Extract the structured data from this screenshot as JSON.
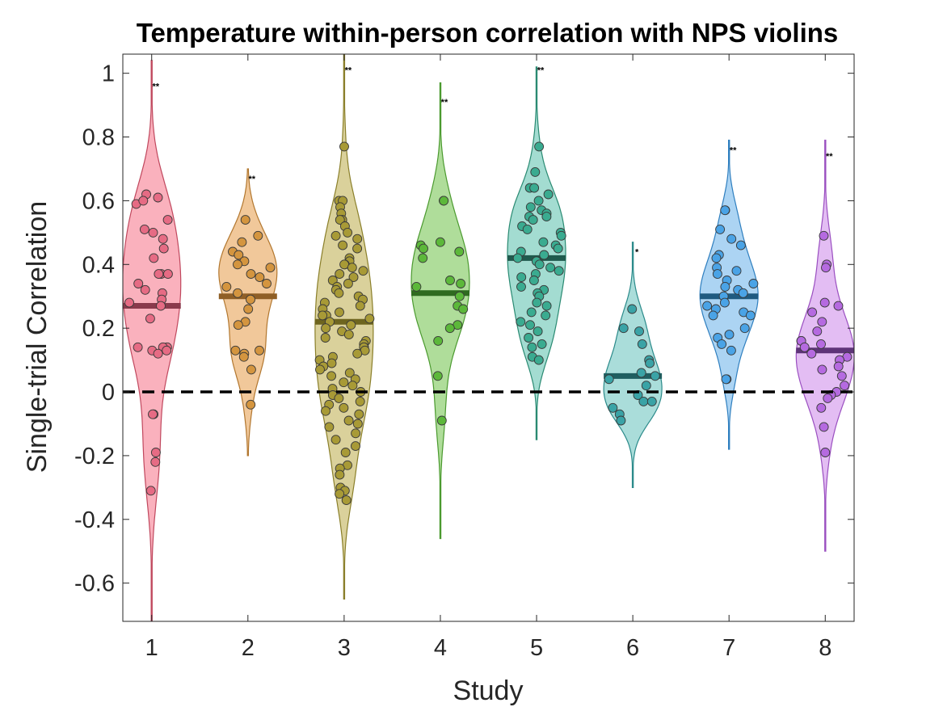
{
  "chart_data": {
    "type": "violin",
    "title": "Temperature within-person correlation with NPS violins",
    "xlabel": "Study",
    "ylabel": "Single-trial Correlation",
    "xlim": [
      0.7,
      8.3
    ],
    "ylim": [
      -0.72,
      1.06
    ],
    "categories": [
      "1",
      "2",
      "3",
      "4",
      "5",
      "6",
      "7",
      "8"
    ],
    "y_ticks": [
      -0.6,
      -0.4,
      -0.2,
      0,
      0.2,
      0.4,
      0.6,
      0.8,
      1
    ],
    "y_tick_labels": [
      "-0.6",
      "-0.4",
      "-0.2",
      "0",
      "0.2",
      "0.4",
      "0.6",
      "0.8",
      "1"
    ],
    "reference_line": {
      "y": 0,
      "style": "dashed"
    },
    "grid": false,
    "series": [
      {
        "study": 1,
        "fill": "#f9a8b6",
        "edge": "#c0485e",
        "point": "#e66b84",
        "mean_color": "#8a3a4c",
        "mean": 0.27,
        "significance": "**",
        "sig_y": 0.95,
        "violin_range": [
          -0.79,
          1.04
        ],
        "points": [
          0.59,
          0.54,
          0.62,
          0.6,
          0.61,
          0.5,
          0.51,
          0.48,
          0.45,
          0.42,
          0.37,
          0.37,
          0.37,
          0.34,
          0.32,
          0.31,
          0.29,
          0.28,
          0.27,
          0.23,
          0.14,
          0.14,
          0.14,
          0.13,
          0.13,
          0.12,
          -0.07,
          -0.07,
          -0.19,
          -0.22,
          -0.31
        ]
      },
      {
        "study": 2,
        "fill": "#efc28f",
        "edge": "#b2772f",
        "point": "#d4953f",
        "mean_color": "#8f5f26",
        "mean": 0.3,
        "significance": "**",
        "sig_y": 0.66,
        "violin_range": [
          -0.2,
          0.7
        ],
        "points": [
          0.54,
          0.49,
          0.47,
          0.44,
          0.43,
          0.41,
          0.4,
          0.39,
          0.37,
          0.36,
          0.34,
          0.33,
          0.31,
          0.29,
          0.26,
          0.22,
          0.21,
          0.13,
          0.13,
          0.12,
          0.11,
          0.07,
          -0.04
        ]
      },
      {
        "study": 3,
        "fill": "#d6cc90",
        "edge": "#8a7f2a",
        "point": "#a89a36",
        "mean_color": "#6e651f",
        "mean": 0.22,
        "significance": "**",
        "sig_y": 1.0,
        "violin_range": [
          -0.65,
          1.07
        ],
        "points": [
          0.77,
          0.6,
          0.6,
          0.58,
          0.56,
          0.54,
          0.54,
          0.52,
          0.5,
          0.49,
          0.48,
          0.46,
          0.45,
          0.42,
          0.41,
          0.4,
          0.4,
          0.39,
          0.38,
          0.37,
          0.36,
          0.35,
          0.34,
          0.33,
          0.32,
          0.31,
          0.3,
          0.29,
          0.28,
          0.27,
          0.26,
          0.25,
          0.24,
          0.24,
          0.23,
          0.22,
          0.21,
          0.2,
          0.19,
          0.18,
          0.17,
          0.16,
          0.15,
          0.14,
          0.14,
          0.13,
          0.12,
          0.11,
          0.1,
          0.09,
          0.08,
          0.07,
          0.06,
          0.05,
          0.04,
          0.03,
          0.02,
          0.01,
          0.0,
          -0.01,
          -0.02,
          -0.03,
          -0.04,
          -0.05,
          -0.06,
          -0.07,
          -0.09,
          -0.1,
          -0.11,
          -0.13,
          -0.15,
          -0.17,
          -0.19,
          -0.23,
          -0.24,
          -0.26,
          -0.3,
          -0.31,
          -0.32,
          -0.34
        ]
      },
      {
        "study": 4,
        "fill": "#a6d98f",
        "edge": "#4b9a2f",
        "point": "#5cb83a",
        "mean_color": "#2f6b20",
        "mean": 0.31,
        "significance": "**",
        "sig_y": 0.9,
        "violin_range": [
          -0.46,
          0.97
        ],
        "points": [
          0.6,
          0.6,
          0.47,
          0.46,
          0.45,
          0.44,
          0.42,
          0.35,
          0.34,
          0.33,
          0.3,
          0.27,
          0.26,
          0.21,
          0.2,
          0.16,
          0.05,
          -0.09
        ]
      },
      {
        "study": 5,
        "fill": "#99d8cc",
        "edge": "#2a8a72",
        "point": "#3aab90",
        "mean_color": "#1f5a4d",
        "mean": 0.42,
        "significance": "**",
        "sig_y": 1.0,
        "violin_range": [
          -0.15,
          1.02
        ],
        "points": [
          0.77,
          0.69,
          0.64,
          0.64,
          0.62,
          0.6,
          0.58,
          0.57,
          0.56,
          0.55,
          0.55,
          0.54,
          0.52,
          0.51,
          0.5,
          0.49,
          0.47,
          0.46,
          0.45,
          0.44,
          0.43,
          0.42,
          0.41,
          0.4,
          0.39,
          0.38,
          0.37,
          0.36,
          0.35,
          0.33,
          0.32,
          0.31,
          0.3,
          0.28,
          0.27,
          0.25,
          0.24,
          0.22,
          0.21,
          0.19,
          0.17,
          0.15,
          0.14,
          0.11,
          0.1
        ]
      },
      {
        "study": 6,
        "fill": "#a1d9d6",
        "edge": "#2b8a8a",
        "point": "#3aa3a6",
        "mean_color": "#1f5e60",
        "mean": 0.05,
        "significance": "*",
        "sig_y": 0.43,
        "violin_range": [
          -0.3,
          0.47
        ],
        "points": [
          0.26,
          0.2,
          0.19,
          0.15,
          0.1,
          0.09,
          0.06,
          0.05,
          0.04,
          0.02,
          -0.01,
          -0.03,
          -0.03,
          -0.05,
          -0.07,
          -0.09
        ]
      },
      {
        "study": 7,
        "fill": "#a3cff2",
        "edge": "#2f7fbf",
        "point": "#4aa3e6",
        "mean_color": "#1f5a80",
        "mean": 0.3,
        "significance": "**",
        "sig_y": 0.75,
        "violin_range": [
          -0.18,
          0.79
        ],
        "points": [
          0.57,
          0.57,
          0.51,
          0.48,
          0.46,
          0.43,
          0.42,
          0.39,
          0.38,
          0.37,
          0.35,
          0.34,
          0.33,
          0.32,
          0.31,
          0.3,
          0.28,
          0.27,
          0.26,
          0.25,
          0.24,
          0.24,
          0.2,
          0.18,
          0.17,
          0.15,
          0.13,
          0.04,
          0.04
        ]
      },
      {
        "study": 8,
        "fill": "#e0b6f2",
        "edge": "#9a4fc0",
        "point": "#b56ae0",
        "mean_color": "#5e3478",
        "mean": 0.13,
        "significance": "**",
        "sig_y": 0.73,
        "violin_range": [
          -0.5,
          0.79
        ],
        "points": [
          0.49,
          0.4,
          0.39,
          0.28,
          0.27,
          0.25,
          0.22,
          0.19,
          0.16,
          0.16,
          0.15,
          0.14,
          0.12,
          0.11,
          0.1,
          0.08,
          0.07,
          0.05,
          0.02,
          0.0,
          -0.01,
          -0.02,
          -0.05,
          -0.11,
          -0.19
        ]
      }
    ]
  }
}
